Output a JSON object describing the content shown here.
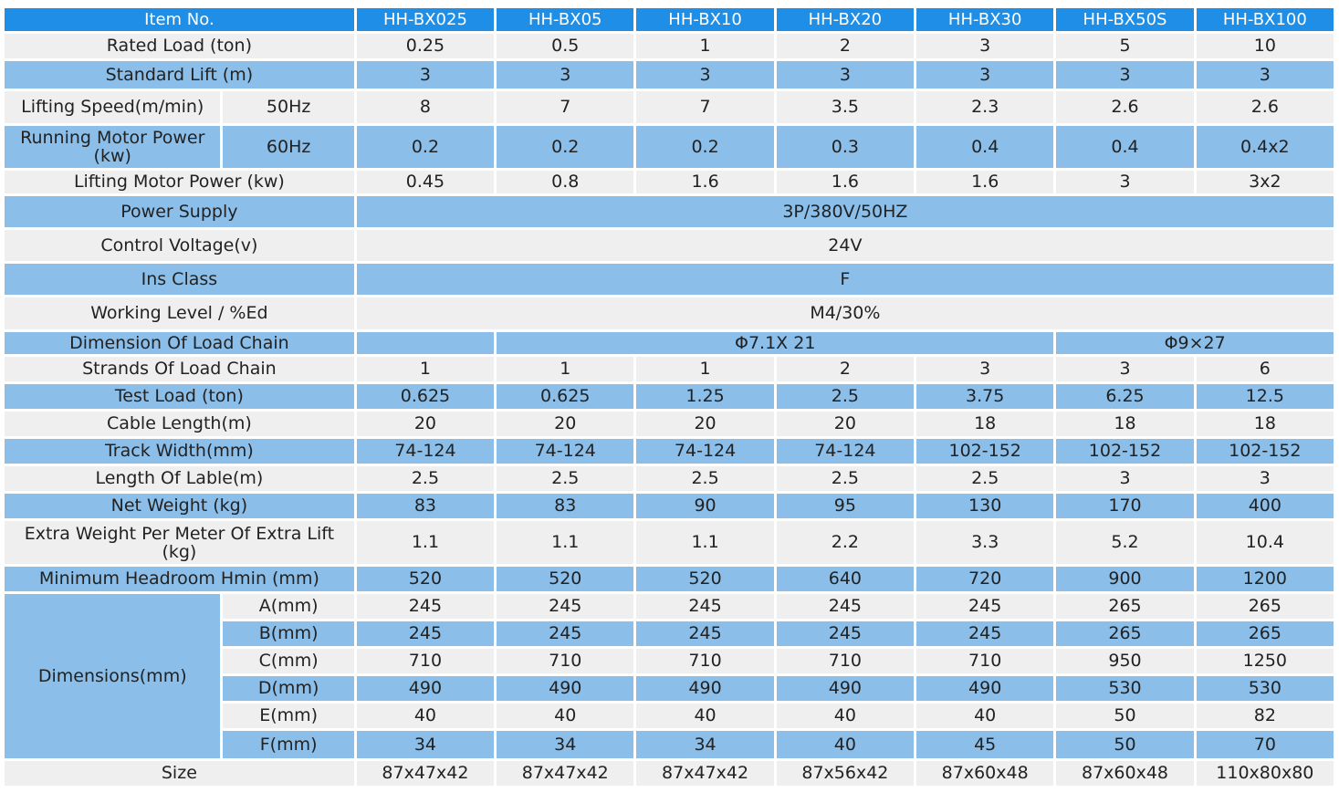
{
  "header": {
    "label": "Item No.",
    "models": [
      "HH-BX025",
      "HH-BX05",
      "HH-BX10",
      "HH-BX20",
      "HH-BX30",
      "HH-BX50S",
      "HH-BX100"
    ]
  },
  "rated_load": {
    "label": "Rated Load (ton)",
    "values": [
      "0.25",
      "0.5",
      "1",
      "2",
      "3",
      "5",
      "10"
    ]
  },
  "standard_lift": {
    "label": "Standard Lift (m)",
    "values": [
      "3",
      "3",
      "3",
      "3",
      "3",
      "3",
      "3"
    ]
  },
  "lifting_speed": {
    "label": "Lifting Speed(m/min)",
    "freq": "50Hz",
    "values": [
      "8",
      "7",
      "7",
      "3.5",
      "2.3",
      "2.6",
      "2.6"
    ]
  },
  "running_motor_power": {
    "label": "Running Motor Power (kw)",
    "freq": "60Hz",
    "values": [
      "0.2",
      "0.2",
      "0.2",
      "0.3",
      "0.4",
      "0.4",
      "0.4x2"
    ]
  },
  "lifting_motor_power": {
    "label": "Lifting Motor Power  (kw)",
    "values": [
      "0.45",
      "0.8",
      "1.6",
      "1.6",
      "1.6",
      "3",
      "3x2"
    ]
  },
  "power_supply": {
    "label": "Power Supply",
    "value": "3P/380V/50HZ"
  },
  "control_voltage": {
    "label": "Control Voltage(v)",
    "value": "24V"
  },
  "ins_class": {
    "label": "Ins Class",
    "value": "F"
  },
  "working_level": {
    "label": "Working Level / %Ed",
    "value": "M4/30%"
  },
  "load_chain_dimension": {
    "label": "Dimension Of Load Chain",
    "first": "",
    "group_a": "Φ7.1X 21",
    "group_b": "Φ9×27"
  },
  "strands_load_chain": {
    "label": "Strands Of Load Chain",
    "values": [
      "1",
      "1",
      "1",
      "2",
      "3",
      "3",
      "6"
    ]
  },
  "test_load": {
    "label": "Test Load (ton)",
    "values": [
      "0.625",
      "0.625",
      "1.25",
      "2.5",
      "3.75",
      "6.25",
      "12.5"
    ]
  },
  "cable_length": {
    "label": "Cable Length(m)",
    "values": [
      "20",
      "20",
      "20",
      "20",
      "18",
      "18",
      "18"
    ]
  },
  "track_width": {
    "label": "Track Width(mm)",
    "values": [
      "74-124",
      "74-124",
      "74-124",
      "74-124",
      "102-152",
      "102-152",
      "102-152"
    ]
  },
  "length_lable": {
    "label": "Length Of Lable(m)",
    "values": [
      "2.5",
      "2.5",
      "2.5",
      "2.5",
      "2.5",
      "3",
      "3"
    ]
  },
  "net_weight": {
    "label": "Net Weight (kg)",
    "values": [
      "83",
      "83",
      "90",
      "95",
      "130",
      "170",
      "400"
    ]
  },
  "extra_weight": {
    "label": "Extra Weight Per Meter  Of Extra Lift (kg)",
    "values": [
      "1.1",
      "1.1",
      "1.1",
      "2.2",
      "3.3",
      "5.2",
      "10.4"
    ]
  },
  "min_headroom": {
    "label": "Minimum Headroom  Hmin (mm)",
    "values": [
      "520",
      "520",
      "520",
      "640",
      "720",
      "900",
      "1200"
    ]
  },
  "dimensions": {
    "label": "Dimensions(mm)",
    "rows": [
      {
        "label": "A(mm)",
        "values": [
          "245",
          "245",
          "245",
          "245",
          "245",
          "265",
          "265"
        ]
      },
      {
        "label": "B(mm)",
        "values": [
          "245",
          "245",
          "245",
          "245",
          "245",
          "265",
          "265"
        ]
      },
      {
        "label": "C(mm)",
        "values": [
          "710",
          "710",
          "710",
          "710",
          "710",
          "950",
          "1250"
        ]
      },
      {
        "label": "D(mm)",
        "values": [
          "490",
          "490",
          "490",
          "490",
          "490",
          "530",
          "530"
        ]
      },
      {
        "label": "E(mm)",
        "values": [
          "40",
          "40",
          "40",
          "40",
          "40",
          "50",
          "82"
        ]
      },
      {
        "label": "F(mm)",
        "values": [
          "34",
          "34",
          "34",
          "40",
          "45",
          "50",
          "70"
        ]
      }
    ]
  },
  "size": {
    "label": "Size",
    "values": [
      "87x47x42",
      "87x47x42",
      "87x47x42",
      "87x56x42",
      "87x60x48",
      "87x60x48",
      "110x80x80"
    ]
  },
  "colors": {
    "header": "#1e8ee6",
    "blue_row": "#8bbfea",
    "grey_row": "#efefef",
    "header_text": "#ffffff"
  }
}
